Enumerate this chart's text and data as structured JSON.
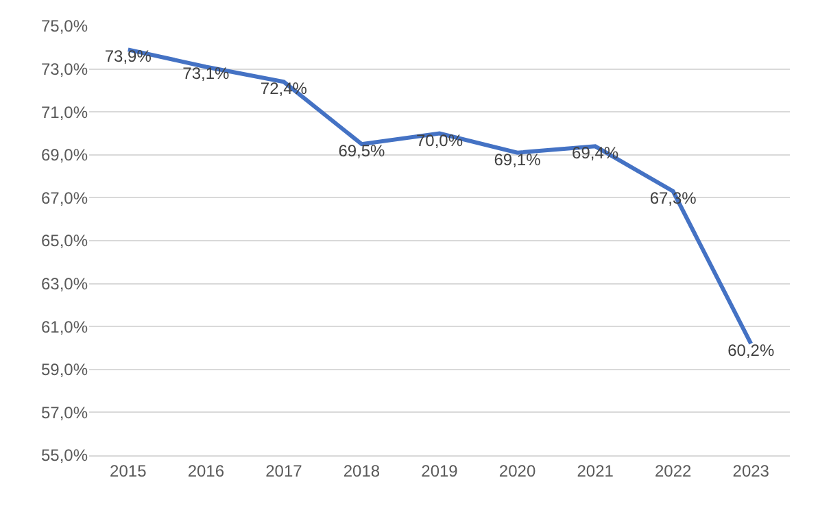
{
  "chart_data": {
    "type": "line",
    "categories": [
      "2015",
      "2016",
      "2017",
      "2018",
      "2019",
      "2020",
      "2021",
      "2022",
      "2023"
    ],
    "series": [
      {
        "color": "#4472c4",
        "values": [
          73.9,
          73.1,
          72.4,
          69.5,
          70.0,
          69.1,
          69.4,
          67.3,
          60.2
        ],
        "value_labels": [
          "73,9%",
          "73,1%",
          "72,4%",
          "69,5%",
          "70,0%",
          "69,1%",
          "69,4%",
          "67,3%",
          "60,2%"
        ]
      }
    ],
    "ylim": [
      55,
      75
    ],
    "yticks": [
      {
        "value": 55,
        "label": "55,0%"
      },
      {
        "value": 57,
        "label": "57,0%"
      },
      {
        "value": 59,
        "label": "59,0%"
      },
      {
        "value": 61,
        "label": "61,0%"
      },
      {
        "value": 63,
        "label": "63,0%"
      },
      {
        "value": 65,
        "label": "65,0%"
      },
      {
        "value": 67,
        "label": "67,0%"
      },
      {
        "value": 69,
        "label": "69,0%"
      },
      {
        "value": 71,
        "label": "71,0%"
      },
      {
        "value": 73,
        "label": "73,0%"
      },
      {
        "value": 75,
        "label": "75,0%"
      }
    ],
    "grid": "y",
    "marker": "none",
    "line_style": "solid",
    "legend": false
  }
}
